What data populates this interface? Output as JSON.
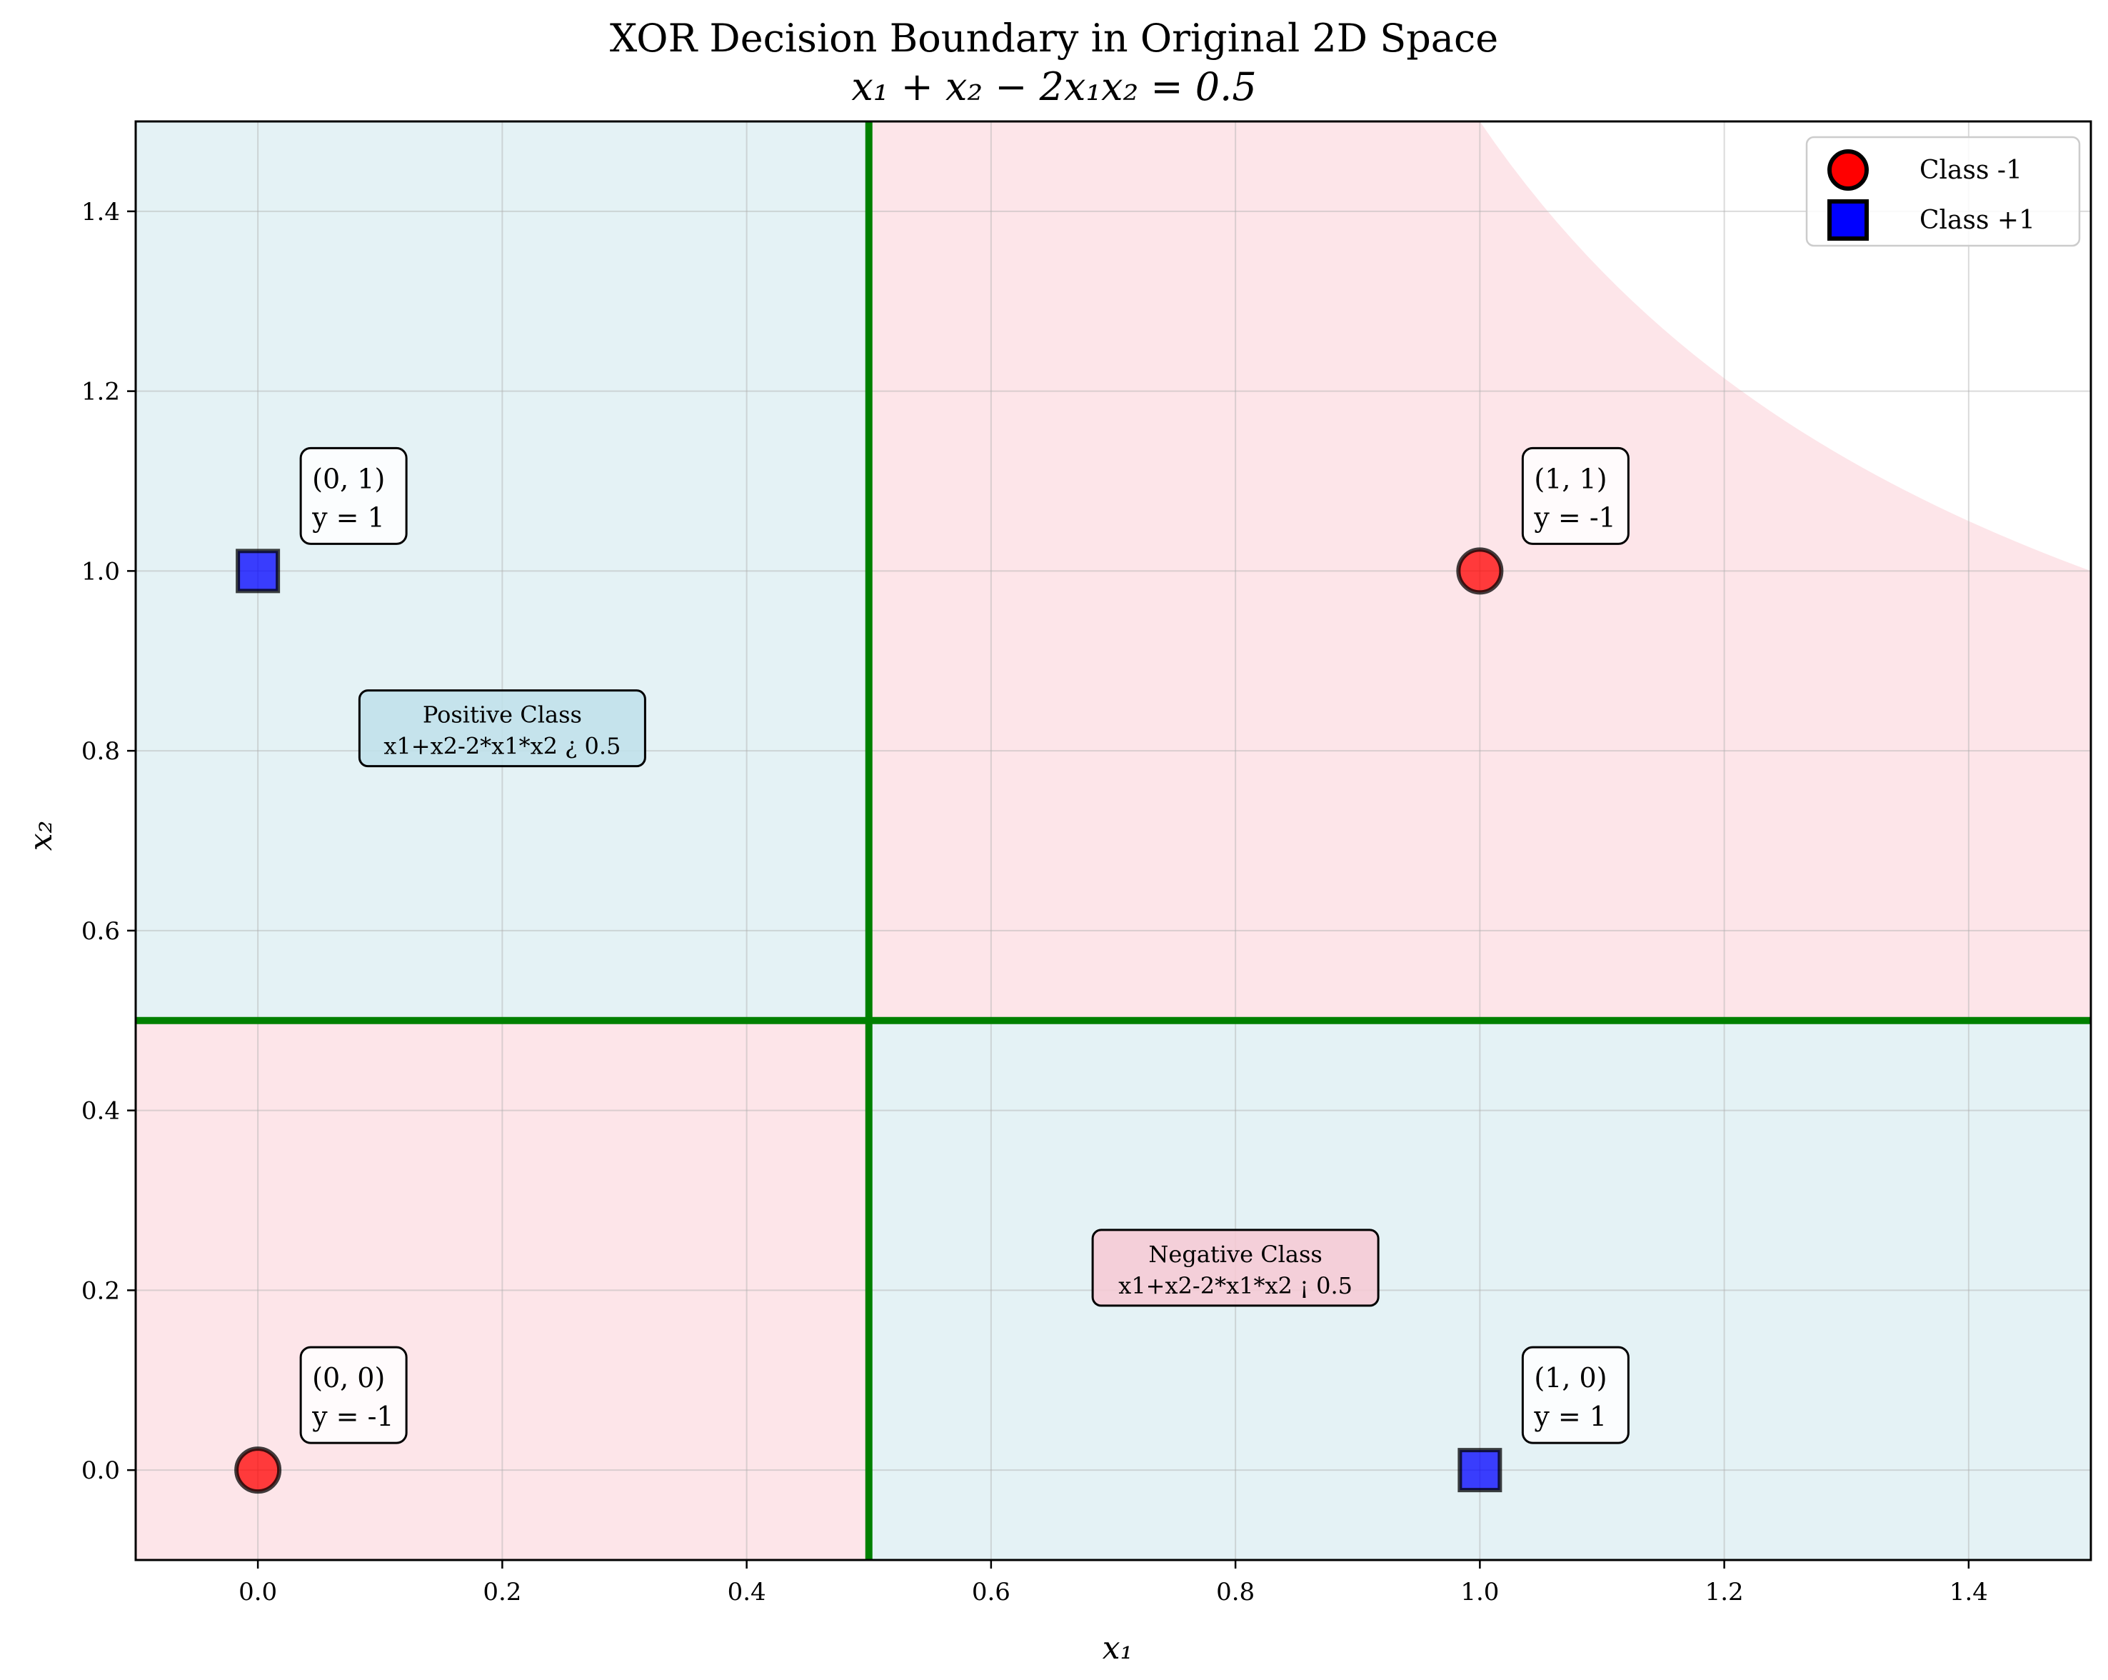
{
  "chart_data": {
    "type": "scatter",
    "title": "XOR Decision Boundary in Original 2D Space",
    "subtitle": "x₁ + x₂ − 2x₁x₂ = 0.5",
    "xlabel": "x₁",
    "ylabel": "x₂",
    "xlim": [
      -0.1,
      1.5
    ],
    "ylim": [
      -0.1,
      1.5
    ],
    "xticks": [
      0.0,
      0.2,
      0.4,
      0.6,
      0.8,
      1.0,
      1.2,
      1.4
    ],
    "yticks": [
      0.0,
      0.2,
      0.4,
      0.6,
      0.8,
      1.0,
      1.2,
      1.4
    ],
    "xtick_labels": [
      "0.0",
      "0.2",
      "0.4",
      "0.6",
      "0.8",
      "1.0",
      "1.2",
      "1.4"
    ],
    "ytick_labels": [
      "0.0",
      "0.2",
      "0.4",
      "0.6",
      "0.8",
      "1.0",
      "1.2",
      "1.4"
    ],
    "grid": true,
    "legend_position": "top-right",
    "boundary": {
      "equation": "x1 + x2 - 2*x1*x2 = 0.5",
      "lines": [
        0.5,
        0.5
      ],
      "color": "#008000"
    },
    "regions": {
      "positive_color": "#e4f2f5",
      "negative_color": "#fde5e9"
    },
    "series": [
      {
        "name": "Class -1",
        "marker": "circle",
        "color": "#ff0000",
        "points": [
          {
            "x": 0,
            "y": 0,
            "label_line1": "(0, 0)",
            "label_line2": "y = -1"
          },
          {
            "x": 1,
            "y": 1,
            "label_line1": "(1, 1)",
            "label_line2": "y = -1"
          }
        ]
      },
      {
        "name": "Class +1",
        "marker": "square",
        "color": "#0000ff",
        "points": [
          {
            "x": 0,
            "y": 1,
            "label_line1": "(0, 1)",
            "label_line2": "y = 1"
          },
          {
            "x": 1,
            "y": 0,
            "label_line1": "(1, 0)",
            "label_line2": "y = 1"
          }
        ]
      }
    ],
    "annotations": [
      {
        "x": 0.2,
        "y": 0.825,
        "line1": "Positive Class",
        "line2": "x1+x2-2*x1*x2 ¿ 0.5",
        "fill": "#bfe0ea"
      },
      {
        "x": 0.8,
        "y": 0.225,
        "line1": "Negative Class",
        "line2": "x1+x2-2*x1*x2 ¡ 0.5",
        "fill": "#f7c9d3"
      }
    ]
  }
}
